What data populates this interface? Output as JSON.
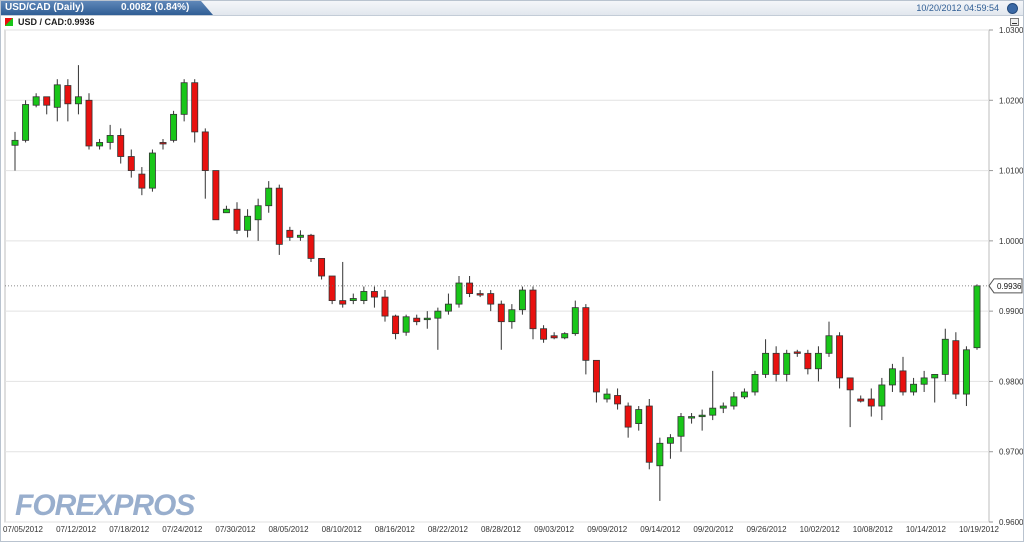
{
  "header": {
    "symbol": "USD/CAD (Daily)",
    "change": "0.0082 (0.84%)",
    "datetime": "10/20/2012 04:59:54"
  },
  "legend": {
    "pair": "USD / CAD:0.9936"
  },
  "watermark": "FOREXPROS",
  "colors": {
    "up": "#19c619",
    "down": "#e8110f",
    "grid": "#e2e2e2",
    "text": "#333333"
  },
  "chart_data": {
    "type": "candlestick",
    "ylim": [
      0.96,
      1.03
    ],
    "yticks": [
      "1.0300",
      "1.0200",
      "1.0100",
      "1.0000",
      "0.9900",
      "0.9800",
      "0.9700",
      "0.9600"
    ],
    "xticks": [
      "07/05/2012",
      "07/12/2012",
      "07/18/2012",
      "07/24/2012",
      "07/30/2012",
      "08/05/2012",
      "08/10/2012",
      "08/16/2012",
      "08/22/2012",
      "08/28/2012",
      "09/03/2012",
      "09/09/2012",
      "09/14/2012",
      "09/20/2012",
      "09/26/2012",
      "10/02/2012",
      "10/08/2012",
      "10/14/2012",
      "10/19/2012"
    ],
    "last_label": "0.9936",
    "last_value": 0.9936,
    "series": [
      [
        1.0136,
        1.0143,
        1.0155,
        1.01
      ],
      [
        1.0143,
        1.0194,
        1.02,
        1.014
      ],
      [
        1.0193,
        1.0205,
        1.021,
        1.019
      ],
      [
        1.0205,
        1.0193,
        1.02,
        1.018
      ],
      [
        1.019,
        1.0222,
        1.023,
        1.017
      ],
      [
        1.0221,
        1.0195,
        1.023,
        1.017
      ],
      [
        1.0195,
        1.0205,
        1.025,
        1.018
      ],
      [
        1.02,
        1.0135,
        1.021,
        1.013
      ],
      [
        1.0135,
        1.014,
        1.0145,
        1.013
      ],
      [
        1.014,
        1.015,
        1.0165,
        1.013
      ],
      [
        1.015,
        1.012,
        1.016,
        1.011
      ],
      [
        1.012,
        1.01,
        1.013,
        1.009
      ],
      [
        1.0095,
        1.0075,
        1.0105,
        1.0065
      ],
      [
        1.0075,
        1.0125,
        1.013,
        1.007
      ],
      [
        1.014,
        1.0138,
        1.0145,
        1.013
      ],
      [
        1.0143,
        1.018,
        1.0185,
        1.014
      ],
      [
        1.018,
        1.0225,
        1.023,
        1.017
      ],
      [
        1.0225,
        1.0155,
        1.023,
        1.014
      ],
      [
        1.0155,
        1.01,
        1.016,
        1.006
      ],
      [
        1.01,
        1.003,
        1.01,
        1.003
      ],
      [
        1.004,
        1.0045,
        1.005,
        1.004
      ],
      [
        1.0045,
        1.0015,
        1.0055,
        1.001
      ],
      [
        1.0015,
        1.0035,
        1.0045,
        1.0005
      ],
      [
        1.003,
        1.005,
        1.006,
        1.0
      ],
      [
        1.005,
        1.0075,
        1.0085,
        1.004
      ],
      [
        1.0075,
        0.9995,
        1.008,
        0.998
      ],
      [
        1.0015,
        1.0005,
        1.002,
        1.0
      ],
      [
        1.0005,
        1.0008,
        1.0015,
        1.0
      ],
      [
        1.0008,
        0.9975,
        1.001,
        0.997
      ],
      [
        0.9975,
        0.995,
        0.9975,
        0.9945
      ],
      [
        0.995,
        0.9915,
        0.995,
        0.991
      ],
      [
        0.9915,
        0.991,
        0.997,
        0.9905
      ],
      [
        0.9915,
        0.9918,
        0.9925,
        0.991
      ],
      [
        0.9915,
        0.9928,
        0.9935,
        0.991
      ],
      [
        0.9928,
        0.992,
        0.9935,
        0.9905
      ],
      [
        0.992,
        0.9893,
        0.993,
        0.9885
      ],
      [
        0.9893,
        0.9868,
        0.9895,
        0.986
      ],
      [
        0.987,
        0.9892,
        0.9895,
        0.9865
      ],
      [
        0.989,
        0.9885,
        0.9895,
        0.988
      ],
      [
        0.989,
        0.989,
        0.99,
        0.9875
      ],
      [
        0.989,
        0.99,
        0.9905,
        0.9845
      ],
      [
        0.99,
        0.991,
        0.9925,
        0.9895
      ],
      [
        0.991,
        0.994,
        0.995,
        0.9905
      ],
      [
        0.994,
        0.9925,
        0.995,
        0.992
      ],
      [
        0.9925,
        0.9923,
        0.993,
        0.992
      ],
      [
        0.9925,
        0.991,
        0.993,
        0.99
      ],
      [
        0.991,
        0.9885,
        0.9915,
        0.9845
      ],
      [
        0.9885,
        0.9902,
        0.991,
        0.9875
      ],
      [
        0.9902,
        0.993,
        0.9935,
        0.9895
      ],
      [
        0.993,
        0.9875,
        0.9935,
        0.986
      ],
      [
        0.9875,
        0.986,
        0.988,
        0.9855
      ],
      [
        0.9865,
        0.9862,
        0.987,
        0.986
      ],
      [
        0.9862,
        0.9868,
        0.987,
        0.986
      ],
      [
        0.9868,
        0.9905,
        0.9915,
        0.9865
      ],
      [
        0.9905,
        0.983,
        0.991,
        0.981
      ],
      [
        0.983,
        0.9785,
        0.983,
        0.977
      ],
      [
        0.9775,
        0.9782,
        0.979,
        0.977
      ],
      [
        0.978,
        0.9768,
        0.979,
        0.976
      ],
      [
        0.9765,
        0.9735,
        0.977,
        0.972
      ],
      [
        0.974,
        0.976,
        0.9765,
        0.973
      ],
      [
        0.9765,
        0.9685,
        0.9775,
        0.9675
      ],
      [
        0.968,
        0.9712,
        0.972,
        0.963
      ],
      [
        0.9712,
        0.972,
        0.9725,
        0.969
      ],
      [
        0.9722,
        0.975,
        0.9755,
        0.97
      ],
      [
        0.9748,
        0.975,
        0.9755,
        0.974
      ],
      [
        0.975,
        0.9752,
        0.976,
        0.973
      ],
      [
        0.9752,
        0.9762,
        0.9815,
        0.9745
      ],
      [
        0.9762,
        0.9765,
        0.977,
        0.9755
      ],
      [
        0.9765,
        0.9778,
        0.9785,
        0.976
      ],
      [
        0.9778,
        0.9785,
        0.979,
        0.9775
      ],
      [
        0.9785,
        0.981,
        0.9815,
        0.978
      ],
      [
        0.981,
        0.984,
        0.986,
        0.9805
      ],
      [
        0.984,
        0.981,
        0.985,
        0.98
      ],
      [
        0.981,
        0.984,
        0.9845,
        0.98
      ],
      [
        0.9842,
        0.984,
        0.9845,
        0.9835
      ],
      [
        0.984,
        0.9818,
        0.9845,
        0.981
      ],
      [
        0.9818,
        0.984,
        0.985,
        0.98
      ],
      [
        0.984,
        0.9865,
        0.9885,
        0.9835
      ],
      [
        0.9865,
        0.9805,
        0.987,
        0.979
      ],
      [
        0.9805,
        0.9788,
        0.9805,
        0.9735
      ],
      [
        0.9775,
        0.9772,
        0.978,
        0.977
      ],
      [
        0.9775,
        0.9765,
        0.979,
        0.975
      ],
      [
        0.9765,
        0.9795,
        0.9805,
        0.9745
      ],
      [
        0.9795,
        0.9818,
        0.9825,
        0.9785
      ],
      [
        0.9815,
        0.9785,
        0.9835,
        0.978
      ],
      [
        0.9785,
        0.9796,
        0.9805,
        0.978
      ],
      [
        0.9796,
        0.9805,
        0.9815,
        0.9785
      ],
      [
        0.9805,
        0.981,
        0.981,
        0.977
      ],
      [
        0.981,
        0.986,
        0.9875,
        0.98
      ],
      [
        0.9858,
        0.9782,
        0.987,
        0.9775
      ],
      [
        0.9782,
        0.9845,
        0.985,
        0.9765
      ],
      [
        0.9848,
        0.9936,
        0.9938,
        0.9845
      ]
    ]
  }
}
